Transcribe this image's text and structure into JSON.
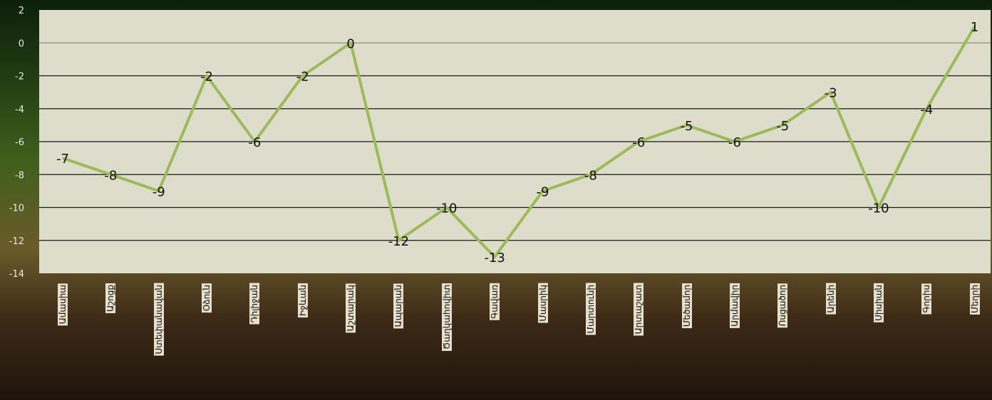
{
  "chart_data": {
    "type": "line",
    "title": "",
    "xlabel": "",
    "ylabel": "",
    "ylim": [
      -14,
      2
    ],
    "yticks": [
      2,
      0,
      -2,
      -4,
      -6,
      -8,
      -10,
      -12,
      -14
    ],
    "grid": true,
    "categories": [
      "Ամասիա",
      "Աշոցք",
      "Ստեփանավան",
      "Օձուն",
      "Դիլիջան",
      "Իջևան",
      "Աշտարակ",
      "Ապարան",
      "Ծաղկահովիտ",
      "Գավառ",
      "Մասրիկ",
      "Մարտունի",
      "Արտաշատ",
      "Մեծամոր",
      "Արմավիր",
      "Ոսցածոր",
      "Արենի",
      "Սիսիան",
      "Գորիս",
      "Մեղրի"
    ],
    "series": [
      {
        "values": [
          -7,
          -8,
          -9,
          -2,
          -6,
          -2,
          0,
          -12,
          -10,
          -13,
          -9,
          -8,
          -6,
          -5,
          -6,
          -5,
          -3,
          -10,
          -4,
          1
        ]
      }
    ],
    "colors": {
      "line": "#9bbb59",
      "plot_bg": "#dedcca",
      "gridline": "#1a1a1a"
    }
  }
}
